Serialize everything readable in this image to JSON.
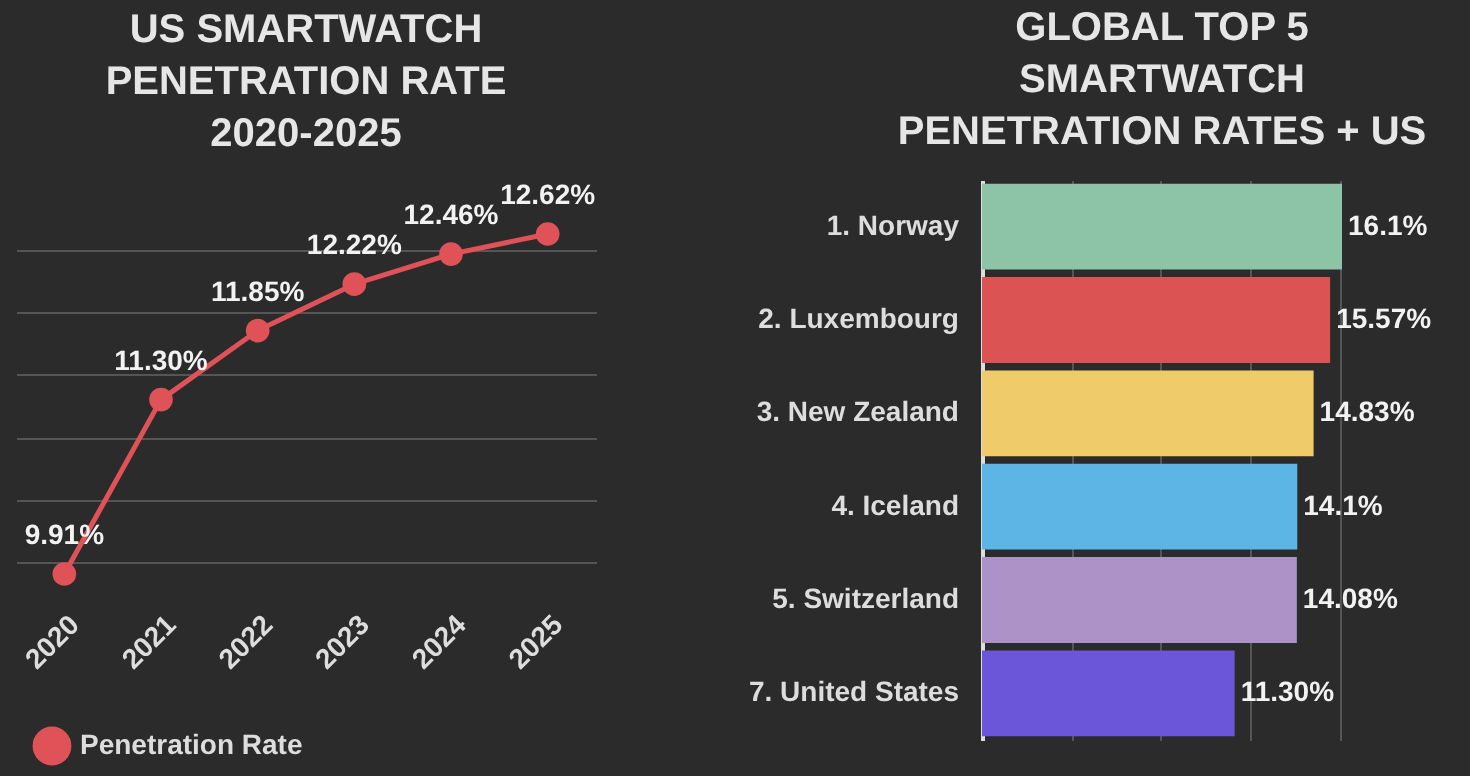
{
  "chart_data": [
    {
      "type": "line",
      "title": "US SMARTWATCH\nPENETRATION RATE\n2020-2025",
      "categories": [
        "2020",
        "2021",
        "2022",
        "2023",
        "2024",
        "2025"
      ],
      "series": [
        {
          "name": "Penetration Rate",
          "color": "#df5257",
          "values": [
            9.91,
            11.3,
            11.85,
            12.22,
            12.46,
            12.62
          ],
          "value_labels": [
            "9.91%",
            "11.30%",
            "11.85%",
            "12.22%",
            "12.46%",
            "12.62%"
          ]
        }
      ],
      "yticks": [
        {
          "value": 10,
          "label": null
        },
        {
          "value": 10.5,
          "label": null
        },
        {
          "value": 11,
          "label": null
        },
        {
          "value": 11.5,
          "label": null
        },
        {
          "value": 12,
          "label": null
        },
        {
          "value": 12.5,
          "label": null
        }
      ],
      "tick_labels": "x",
      "grid": "y",
      "legend": "bottom",
      "marker": "circle",
      "line_style": "solid"
    },
    {
      "type": "bar",
      "orientation": "horizontal",
      "title": "GLOBAL TOP 5\nSMARTWATCH\nPENETRATION RATES + US",
      "categories": [
        "1. Norway",
        "2. Luxembourg",
        "3. New Zealand",
        "4. Iceland",
        "5. Switzerland",
        "7. United States"
      ],
      "values": [
        16.1,
        15.57,
        14.83,
        14.1,
        14.08,
        11.3
      ],
      "value_labels": [
        "16.1%",
        "15.57%",
        "14.83%",
        "14.1%",
        "14.08%",
        "11.30%"
      ],
      "colors": [
        "#8dc3a7",
        "#dc5354",
        "#f0cb69",
        "#5db5e5",
        "#ad92c8",
        "#6b55d9"
      ],
      "xticks": [
        {
          "value": 0,
          "label": null
        },
        {
          "value": 4,
          "label": null
        },
        {
          "value": 8,
          "label": null
        },
        {
          "value": 12,
          "label": null
        },
        {
          "value": 16,
          "label": null
        }
      ],
      "tick_labels": "y",
      "grid": "x"
    }
  ]
}
